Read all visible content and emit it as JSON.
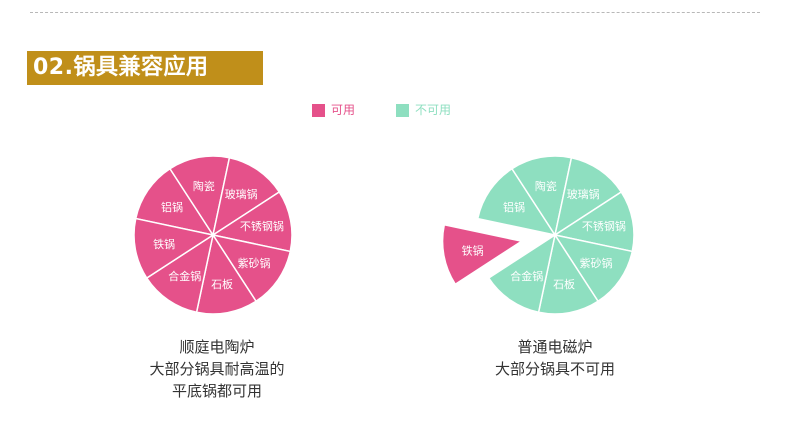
{
  "section_title": "02.锅具兼容应用",
  "colors": {
    "available": "#e5518a",
    "unavailable": "#8edfc0",
    "title_bg": "#c08f1a",
    "slice_border": "#ffffff"
  },
  "legend": [
    {
      "label": "可用",
      "color": "#e5518a"
    },
    {
      "label": "不可用",
      "color": "#8edfc0"
    }
  ],
  "chart_data": [
    {
      "type": "pie",
      "slices": [
        {
          "label": "铝锅",
          "value": 1,
          "status": "可用"
        },
        {
          "label": "陶瓷",
          "value": 1,
          "status": "可用"
        },
        {
          "label": "玻璃锅",
          "value": 1,
          "status": "可用"
        },
        {
          "label": "不锈钢锅",
          "value": 1,
          "status": "可用"
        },
        {
          "label": "紫砂锅",
          "value": 1,
          "status": "可用"
        },
        {
          "label": "石板",
          "value": 1,
          "status": "可用"
        },
        {
          "label": "合金锅",
          "value": 1,
          "status": "可用"
        },
        {
          "label": "铁锅",
          "value": 1,
          "status": "可用"
        }
      ],
      "caption": [
        "顺庭电陶炉",
        "大部分锅具耐高温的",
        "平底锅都可用"
      ]
    },
    {
      "type": "pie",
      "slices": [
        {
          "label": "铝锅",
          "value": 1,
          "status": "不可用"
        },
        {
          "label": "陶瓷",
          "value": 1,
          "status": "不可用"
        },
        {
          "label": "玻璃锅",
          "value": 1,
          "status": "不可用"
        },
        {
          "label": "不锈钢锅",
          "value": 1,
          "status": "不可用"
        },
        {
          "label": "紫砂锅",
          "value": 1,
          "status": "不可用"
        },
        {
          "label": "石板",
          "value": 1,
          "status": "不可用"
        },
        {
          "label": "合金锅",
          "value": 1,
          "status": "不可用"
        },
        {
          "label": "铁锅",
          "value": 1,
          "status": "可用",
          "exploded": true
        }
      ],
      "caption": [
        "普通电磁炉",
        "大部分锅具不可用"
      ]
    }
  ]
}
